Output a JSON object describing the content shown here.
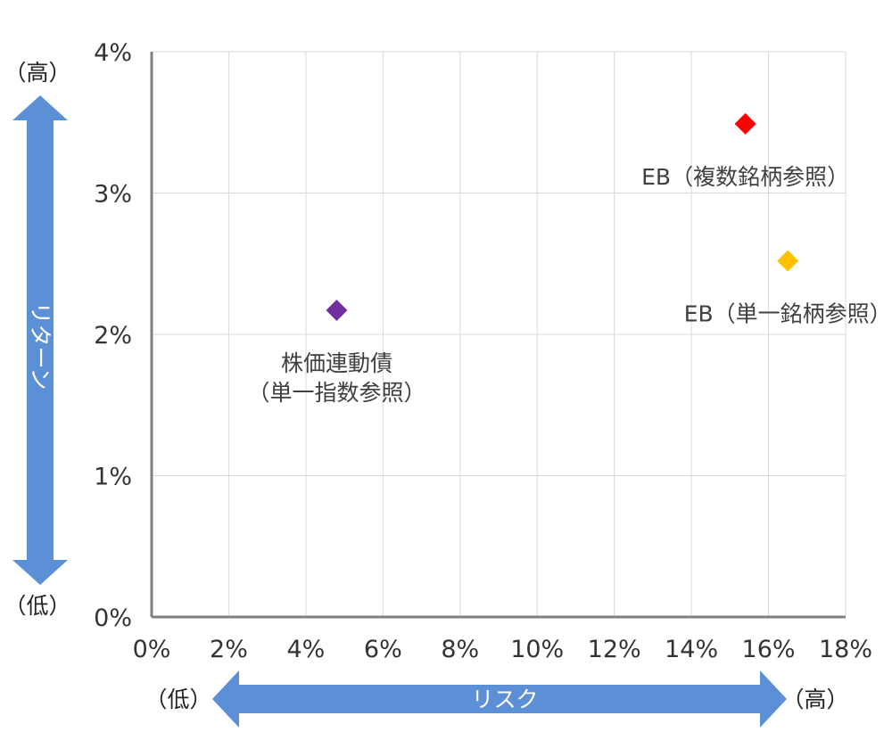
{
  "chart_data": {
    "type": "scatter",
    "title": "",
    "x_axis": {
      "range": [
        0,
        18
      ],
      "ticks": [
        0,
        2,
        4,
        6,
        8,
        10,
        12,
        14,
        16,
        18
      ],
      "tick_labels": [
        "0%",
        "2%",
        "4%",
        "6%",
        "8%",
        "10%",
        "12%",
        "14%",
        "16%",
        "18%"
      ],
      "label": "リスク",
      "low_label": "（低）",
      "high_label": "（高）"
    },
    "y_axis": {
      "range": [
        0,
        4
      ],
      "ticks": [
        0,
        1,
        2,
        3,
        4
      ],
      "tick_labels": [
        "0%",
        "1%",
        "2%",
        "3%",
        "4%"
      ],
      "label": "リターン",
      "low_label": "（低）",
      "high_label": "（高）"
    },
    "grid": true,
    "marker": "diamond",
    "points": [
      {
        "label_lines": [
          "株価連動債",
          "（単一指数参照）"
        ],
        "x": 4.8,
        "y": 2.17,
        "color": "#7030a0"
      },
      {
        "label_lines": [
          "EB（複数銘柄参照）"
        ],
        "x": 15.4,
        "y": 3.49,
        "color": "#ff0000"
      },
      {
        "label_lines": [
          "EB（単一銘柄参照）"
        ],
        "x": 16.5,
        "y": 2.52,
        "color": "#ffc000"
      }
    ],
    "arrow_color": "#5b8fd6"
  }
}
